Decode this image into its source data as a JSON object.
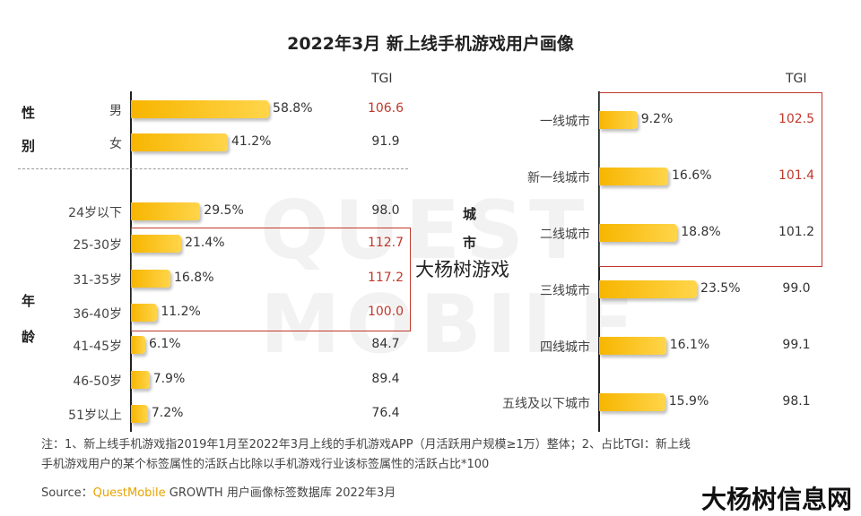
{
  "title": "2022年3月 新上线手机游戏用户画像",
  "tgi_header": "TGI",
  "watermark": "QUEST MOBILE",
  "overlay_text": "大杨树游戏",
  "corner_logo": "大杨树信息网",
  "colors": {
    "bar": "#f7b500",
    "highlight": "#c0392b"
  },
  "chart_data": [
    {
      "type": "bar",
      "orientation": "horizontal",
      "groups": [
        {
          "label": [
            "性",
            "别"
          ],
          "categories": [
            "男",
            "女"
          ],
          "values": [
            58.8,
            41.2
          ],
          "tgi": [
            106.6,
            91.9
          ],
          "tgi_highlight": [
            true,
            false
          ]
        },
        {
          "label": [
            "年",
            "龄"
          ],
          "categories": [
            "24岁以下",
            "25-30岁",
            "31-35岁",
            "36-40岁",
            "41-45岁",
            "46-50岁",
            "51岁以上"
          ],
          "values": [
            29.5,
            21.4,
            16.8,
            11.2,
            6.1,
            7.9,
            7.2
          ],
          "tgi": [
            98.0,
            112.7,
            117.2,
            100.0,
            84.7,
            89.4,
            76.4
          ],
          "tgi_highlight": [
            false,
            true,
            true,
            true,
            false,
            false,
            false
          ]
        }
      ],
      "unit": "%"
    },
    {
      "type": "bar",
      "orientation": "horizontal",
      "groups": [
        {
          "label": [
            "城",
            "市"
          ],
          "categories": [
            "一线城市",
            "新一线城市",
            "二线城市",
            "三线城市",
            "四线城市",
            "五线及以下城市"
          ],
          "values": [
            9.2,
            16.6,
            18.8,
            23.5,
            16.1,
            15.9
          ],
          "tgi": [
            102.5,
            101.4,
            101.2,
            99.0,
            99.1,
            98.1
          ],
          "tgi_highlight": [
            true,
            true,
            false,
            false,
            false,
            false
          ]
        }
      ],
      "unit": "%"
    }
  ],
  "note_line1": "注：1、新上线手机游戏指2019年1月至2022年3月上线的手机游戏APP（月活跃用户规模≥1万）整体；2、占比TGI：新上线",
  "note_line2": "手机游戏用户的某个标签属性的活跃占比除以手机游戏行业该标签属性的活跃占比*100",
  "source_prefix": "Source：",
  "source_brand": "QuestMobile",
  "source_rest": " GROWTH 用户画像标签数据库 2022年3月"
}
